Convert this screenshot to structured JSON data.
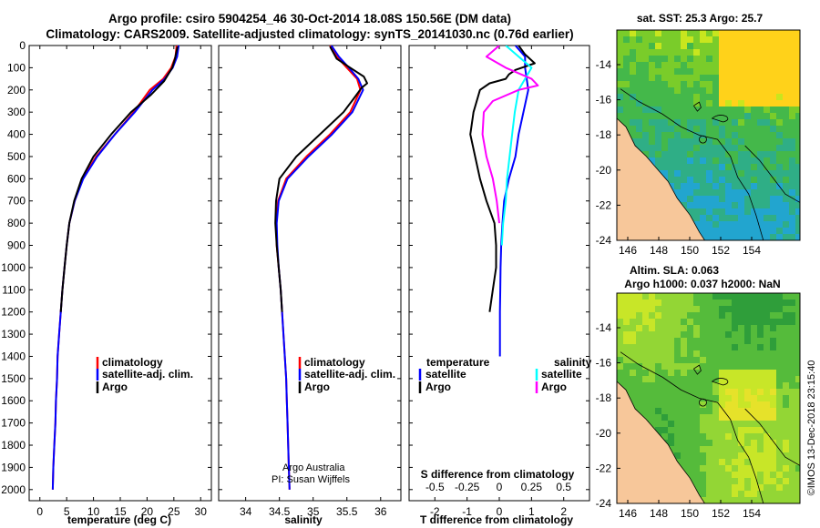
{
  "header": {
    "title_line1": "Argo profile: csiro 5904254_46 30-Oct-2014 18.08S 150.56E (DM data)",
    "title_line2": "Climatology: CARS2009. Satellite-adjusted climatology: synTS_20141030.nc (0.76d earlier)"
  },
  "colors": {
    "climatology": "#ff0000",
    "satellite": "#0000ff",
    "argo": "#000000",
    "salinity_satellite": "#00ffff",
    "salinity_argo": "#ff00ff"
  },
  "chart_data": [
    {
      "type": "line",
      "name": "temperature-profile",
      "xlabel": "temperature (deg C)",
      "xlim": [
        -2,
        32
      ],
      "xticks": [
        0,
        5,
        10,
        15,
        20,
        25,
        30
      ],
      "ylim": [
        0,
        2050
      ],
      "yticks": [
        0,
        100,
        200,
        300,
        400,
        500,
        600,
        700,
        800,
        900,
        1000,
        1100,
        1200,
        1300,
        1400,
        1500,
        1600,
        1700,
        1800,
        1900,
        2000
      ],
      "legend": [
        "climatology",
        "satellite-adj. clim.",
        "Argo"
      ],
      "series": [
        {
          "name": "climatology",
          "points": [
            [
              25.5,
              0
            ],
            [
              25.3,
              50
            ],
            [
              24.5,
              100
            ],
            [
              23,
              150
            ],
            [
              20.5,
              200
            ],
            [
              17.5,
              300
            ],
            [
              14,
              400
            ],
            [
              10.5,
              500
            ],
            [
              8,
              600
            ],
            [
              6.5,
              700
            ],
            [
              5.5,
              800
            ],
            [
              5,
              900
            ],
            [
              4.6,
              1000
            ],
            [
              4.2,
              1100
            ],
            [
              3.9,
              1200
            ],
            [
              3.6,
              1300
            ],
            [
              3.3,
              1400
            ],
            [
              3.2,
              1500
            ],
            [
              3,
              1600
            ],
            [
              2.9,
              1700
            ],
            [
              2.7,
              1800
            ],
            [
              2.5,
              1900
            ],
            [
              2.4,
              2000
            ]
          ]
        },
        {
          "name": "satellite-adj. clim.",
          "points": [
            [
              25.9,
              0
            ],
            [
              25.6,
              50
            ],
            [
              24.8,
              100
            ],
            [
              23.3,
              150
            ],
            [
              21,
              200
            ],
            [
              17.7,
              300
            ],
            [
              14,
              400
            ],
            [
              10.7,
              500
            ],
            [
              8.1,
              600
            ],
            [
              6.5,
              700
            ],
            [
              5.5,
              800
            ],
            [
              5,
              900
            ],
            [
              4.6,
              1000
            ],
            [
              4.2,
              1100
            ],
            [
              3.9,
              1200
            ],
            [
              3.6,
              1300
            ],
            [
              3.3,
              1400
            ],
            [
              3.2,
              1500
            ],
            [
              3,
              1600
            ],
            [
              2.9,
              1700
            ],
            [
              2.7,
              1800
            ],
            [
              2.5,
              1900
            ],
            [
              2.4,
              2000
            ]
          ]
        },
        {
          "name": "Argo",
          "points": [
            [
              25.7,
              5
            ],
            [
              25.2,
              60
            ],
            [
              24.7,
              100
            ],
            [
              23.2,
              160
            ],
            [
              20.8,
              220
            ],
            [
              17,
              300
            ],
            [
              13.3,
              400
            ],
            [
              10,
              500
            ],
            [
              7.8,
              600
            ],
            [
              6.4,
              700
            ],
            [
              5.5,
              800
            ],
            [
              5,
              900
            ],
            [
              4.6,
              1000
            ],
            [
              4.2,
              1100
            ],
            [
              3.9,
              1200
            ]
          ]
        }
      ]
    },
    {
      "type": "line",
      "name": "salinity-profile",
      "xlabel": "salinity",
      "xlim": [
        33.6,
        36.3
      ],
      "xticks": [
        34,
        34.5,
        35,
        35.5,
        36
      ],
      "xtick_labels": [
        "34",
        "34.5",
        "35",
        "35.5",
        "36"
      ],
      "ylim": [
        0,
        2050
      ],
      "legend": [
        "climatology",
        "satellite-adj. clim.",
        "Argo"
      ],
      "annotation": [
        "Argo Australia",
        "PI: Susan Wijffels"
      ],
      "series": [
        {
          "name": "climatology",
          "points": [
            [
              35.25,
              0
            ],
            [
              35.35,
              50
            ],
            [
              35.5,
              100
            ],
            [
              35.65,
              150
            ],
            [
              35.7,
              200
            ],
            [
              35.55,
              300
            ],
            [
              35.25,
              400
            ],
            [
              34.9,
              500
            ],
            [
              34.6,
              600
            ],
            [
              34.48,
              700
            ],
            [
              34.45,
              800
            ],
            [
              34.46,
              900
            ],
            [
              34.49,
              1000
            ],
            [
              34.52,
              1100
            ],
            [
              34.54,
              1200
            ],
            [
              34.56,
              1300
            ],
            [
              34.58,
              1400
            ],
            [
              34.6,
              1500
            ],
            [
              34.61,
              1600
            ],
            [
              34.62,
              1700
            ],
            [
              34.63,
              1800
            ],
            [
              34.64,
              1900
            ],
            [
              34.65,
              2000
            ]
          ]
        },
        {
          "name": "satellite-adj. clim.",
          "points": [
            [
              35.27,
              0
            ],
            [
              35.38,
              50
            ],
            [
              35.53,
              100
            ],
            [
              35.67,
              150
            ],
            [
              35.74,
              200
            ],
            [
              35.58,
              300
            ],
            [
              35.28,
              400
            ],
            [
              34.93,
              500
            ],
            [
              34.62,
              600
            ],
            [
              34.49,
              700
            ],
            [
              34.46,
              800
            ],
            [
              34.47,
              900
            ],
            [
              34.49,
              1000
            ],
            [
              34.52,
              1100
            ],
            [
              34.54,
              1200
            ],
            [
              34.56,
              1300
            ],
            [
              34.58,
              1400
            ],
            [
              34.6,
              1500
            ],
            [
              34.61,
              1600
            ],
            [
              34.62,
              1700
            ],
            [
              34.63,
              1800
            ],
            [
              34.64,
              1900
            ],
            [
              34.65,
              2000
            ]
          ]
        },
        {
          "name": "Argo",
          "points": [
            [
              35.25,
              5
            ],
            [
              35.35,
              60
            ],
            [
              35.55,
              100
            ],
            [
              35.75,
              140
            ],
            [
              35.8,
              170
            ],
            [
              35.72,
              190
            ],
            [
              35.6,
              240
            ],
            [
              35.45,
              300
            ],
            [
              35.1,
              400
            ],
            [
              34.75,
              500
            ],
            [
              34.5,
              600
            ],
            [
              34.45,
              700
            ],
            [
              34.44,
              800
            ],
            [
              34.46,
              900
            ],
            [
              34.49,
              1000
            ],
            [
              34.52,
              1100
            ],
            [
              34.54,
              1200
            ]
          ]
        }
      ]
    },
    {
      "type": "line",
      "name": "difference-profile",
      "xlabel": "T difference from climatology",
      "xlabel2": "S difference from climatology",
      "xlim": [
        -2.8,
        2.8
      ],
      "xticks": [
        -2,
        -1,
        0,
        1,
        2
      ],
      "s_tick_labels": [
        "-0.5",
        "-0.25",
        "0",
        "0.25",
        "0.5"
      ],
      "ylim": [
        0,
        2050
      ],
      "legend_left_title": "temperature",
      "legend_right_title": "salinity",
      "legend": [
        "satellite",
        "Argo",
        "satellite",
        "Argo"
      ],
      "series": [
        {
          "name": "T satellite",
          "points": [
            [
              0.5,
              0
            ],
            [
              0.8,
              50
            ],
            [
              0.8,
              100
            ],
            [
              0.85,
              150
            ],
            [
              0.9,
              200
            ],
            [
              0.75,
              300
            ],
            [
              0.6,
              400
            ],
            [
              0.5,
              500
            ],
            [
              0.3,
              600
            ],
            [
              0.15,
              700
            ],
            [
              0.1,
              800
            ],
            [
              0.06,
              900
            ],
            [
              0.04,
              1000
            ],
            [
              0.03,
              1100
            ],
            [
              0.02,
              1200
            ],
            [
              0.02,
              1300
            ],
            [
              0.02,
              1400
            ]
          ]
        },
        {
          "name": "T Argo",
          "points": [
            [
              0.6,
              0
            ],
            [
              0.8,
              40
            ],
            [
              1.1,
              80
            ],
            [
              0.5,
              110
            ],
            [
              0.3,
              130
            ],
            [
              0.2,
              150
            ],
            [
              -0.3,
              170
            ],
            [
              -0.6,
              200
            ],
            [
              -0.8,
              300
            ],
            [
              -0.9,
              400
            ],
            [
              -0.75,
              500
            ],
            [
              -0.6,
              600
            ],
            [
              -0.4,
              700
            ],
            [
              -0.15,
              800
            ],
            [
              -0.1,
              900
            ],
            [
              -0.1,
              1000
            ],
            [
              -0.2,
              1100
            ],
            [
              -0.3,
              1200
            ]
          ]
        },
        {
          "name": "S satellite",
          "points": [
            [
              0.05,
              0
            ],
            [
              0.25,
              100
            ],
            [
              0.2,
              150
            ],
            [
              0.15,
              200
            ],
            [
              0.12,
              300
            ],
            [
              0.1,
              400
            ],
            [
              0.08,
              500
            ],
            [
              0.06,
              600
            ],
            [
              0.05,
              700
            ],
            [
              0.03,
              800
            ],
            [
              0.02,
              900
            ]
          ]
        },
        {
          "name": "S Argo",
          "points": [
            [
              0,
              0
            ],
            [
              -0.1,
              50
            ],
            [
              0.05,
              100
            ],
            [
              0.25,
              150
            ],
            [
              0.3,
              180
            ],
            [
              0.15,
              200
            ],
            [
              -0.05,
              250
            ],
            [
              -0.12,
              300
            ],
            [
              -0.13,
              400
            ],
            [
              -0.1,
              500
            ],
            [
              -0.05,
              600
            ],
            [
              -0.02,
              700
            ],
            [
              0,
              800
            ]
          ]
        }
      ]
    },
    {
      "type": "heatmap",
      "name": "sst-map",
      "title": "sat. SST: 25.3  Argo: 25.7",
      "xticks": [
        "146",
        "148",
        "150",
        "152",
        "154"
      ],
      "yticks": [
        "-14",
        "-16",
        "-18",
        "-20",
        "-22",
        "-24"
      ]
    },
    {
      "type": "heatmap",
      "name": "sla-map",
      "title_line1": "Altim. SLA: 0.063",
      "title_line2": "Argo h1000: 0.037 h2000: NaN",
      "xticks": [
        "146",
        "148",
        "150",
        "152",
        "154"
      ],
      "yticks": [
        "-14",
        "-16",
        "-18",
        "-20",
        "-22",
        "-24"
      ]
    }
  ],
  "footer": {
    "stamp": "©IMOS 13-Dec-2018 23:15:40"
  }
}
